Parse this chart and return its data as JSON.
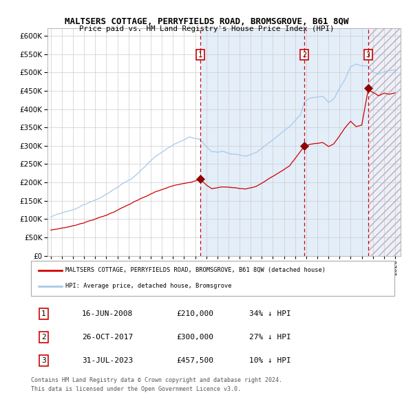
{
  "title": "MALTSERS COTTAGE, PERRYFIELDS ROAD, BROMSGROVE, B61 8QW",
  "subtitle": "Price paid vs. HM Land Registry's House Price Index (HPI)",
  "legend_line1": "MALTSERS COTTAGE, PERRYFIELDS ROAD, BROMSGROVE, B61 8QW (detached house)",
  "legend_line2": "HPI: Average price, detached house, Bromsgrove",
  "sale1_date": "16-JUN-2008",
  "sale1_price": 210000,
  "sale1_pct": "34% ↓ HPI",
  "sale2_date": "26-OCT-2017",
  "sale2_price": 300000,
  "sale2_pct": "27% ↓ HPI",
  "sale3_date": "31-JUL-2023",
  "sale3_price": 457500,
  "sale3_pct": "10% ↓ HPI",
  "footnote1": "Contains HM Land Registry data © Crown copyright and database right 2024.",
  "footnote2": "This data is licensed under the Open Government Licence v3.0.",
  "ylim": [
    0,
    620000
  ],
  "yticks": [
    0,
    50000,
    100000,
    150000,
    200000,
    250000,
    300000,
    350000,
    400000,
    450000,
    500000,
    550000,
    600000
  ],
  "hpi_color": "#a8c8e8",
  "sale_color": "#cc0000",
  "sale1_year": 2008.46,
  "sale2_year": 2017.82,
  "sale3_year": 2023.58,
  "xmin": 1994.7,
  "xmax": 2026.5
}
